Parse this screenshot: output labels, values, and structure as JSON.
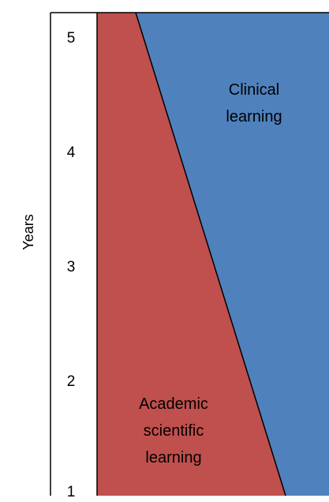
{
  "axis": {
    "label": "Years",
    "ticks": [
      "5",
      "4",
      "3",
      "2",
      "1"
    ]
  },
  "regions": {
    "academic": {
      "line1": "Academic",
      "line2": "scientific",
      "line3": "learning",
      "color": "#c0504d"
    },
    "clinical": {
      "line1": "Clinical",
      "line2": "learning",
      "color": "#4f81bd"
    }
  },
  "chart_data": {
    "type": "area",
    "ylabel": "Years",
    "ylim": [
      1,
      5
    ],
    "series": [
      {
        "name": "Academic scientific learning",
        "share_at_year_1": 0.82,
        "share_at_year_5": 0.17
      },
      {
        "name": "Clinical learning",
        "share_at_year_1": 0.18,
        "share_at_year_5": 0.83
      }
    ]
  }
}
